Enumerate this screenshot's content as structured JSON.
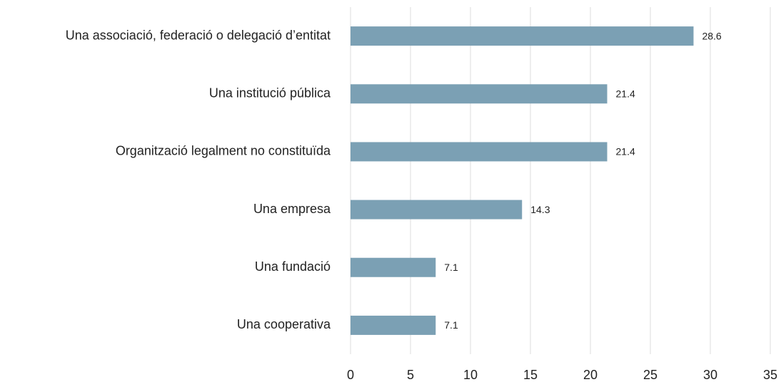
{
  "chart_data": {
    "type": "bar",
    "categories": [
      "Una associació, federació o delegació d’entitat",
      "Una institució pública",
      "Organització legalment no constituïda",
      "Una empresa",
      "Una fundació",
      "Una cooperativa"
    ],
    "values": [
      28.6,
      21.4,
      21.4,
      14.3,
      7.1,
      7.1
    ],
    "color": "#7ba0b4",
    "xlim": [
      0,
      35
    ],
    "xticks": [
      0,
      5,
      10,
      15,
      20,
      25,
      30,
      35
    ],
    "grid": true
  }
}
